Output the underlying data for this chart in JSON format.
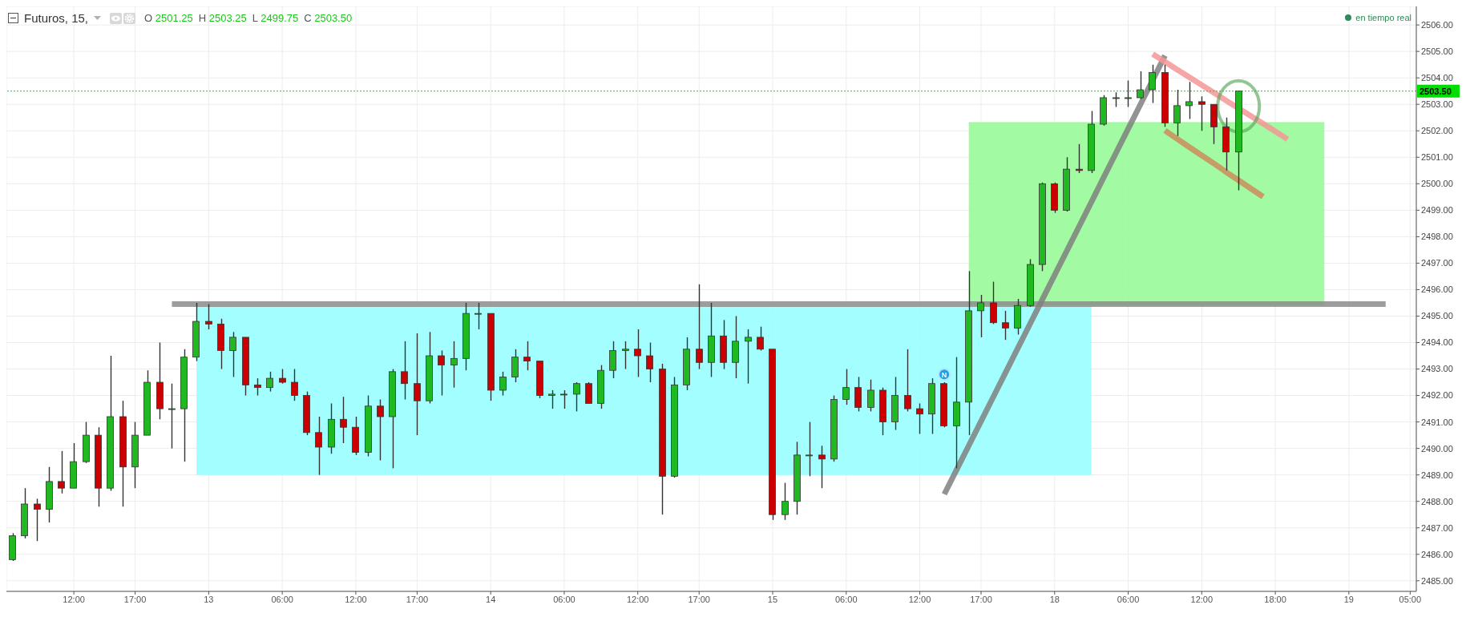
{
  "chart_data": {
    "type": "candlestick",
    "title": "Futuros, 15,",
    "annotations": [
      "O 2501.25",
      "H 2503.25",
      "L 2499.75",
      "C 2503.50",
      "en tiempo real"
    ],
    "categories": [
      null,
      null,
      null,
      null,
      null,
      "12:00",
      null,
      null,
      null,
      null,
      "17:00",
      null,
      null,
      null,
      null,
      null,
      "13",
      null,
      null,
      null,
      null,
      null,
      "06:00",
      null,
      null,
      null,
      null,
      null,
      "12:00",
      null,
      null,
      null,
      null,
      "17:00",
      null,
      null,
      null,
      null,
      null,
      "14",
      null,
      null,
      null,
      null,
      null,
      "06:00",
      null,
      null,
      null,
      null,
      null,
      "12:00",
      null,
      null,
      null,
      null,
      "17:00",
      null,
      null,
      null,
      null,
      null,
      "15",
      null,
      null,
      null,
      null,
      null,
      "06:00",
      null,
      null,
      null,
      null,
      null,
      "12:00",
      null,
      null,
      null,
      null,
      "17:00",
      null,
      null,
      null,
      null,
      null,
      "18",
      null,
      null,
      null,
      null,
      null,
      "06:00",
      null,
      null,
      null,
      null,
      null,
      "12:00",
      null,
      null,
      null,
      null,
      null,
      "18:00",
      null,
      null,
      null,
      null,
      null,
      "19",
      null,
      null,
      null,
      null,
      "05:00"
    ],
    "ohlc": [
      [
        2485.8,
        2486.8,
        2485.75,
        2486.7
      ],
      [
        2486.7,
        2488.5,
        2486.6,
        2487.9
      ],
      [
        2487.9,
        2488.1,
        2486.5,
        2487.7
      ],
      [
        2487.7,
        2489.3,
        2487.2,
        2488.75
      ],
      [
        2488.75,
        2489.9,
        2488.3,
        2488.5
      ],
      [
        2488.5,
        2490.2,
        2488.5,
        2489.5
      ],
      [
        2489.5,
        2491.0,
        2489.45,
        2490.5
      ],
      [
        2490.5,
        2490.8,
        2487.8,
        2488.5
      ],
      [
        2488.5,
        2493.5,
        2488.4,
        2491.2
      ],
      [
        2491.2,
        2491.8,
        2487.8,
        2489.3
      ],
      [
        2489.3,
        2491.0,
        2488.5,
        2490.5
      ],
      [
        2490.5,
        2492.95,
        2490.5,
        2492.5
      ],
      [
        2492.5,
        2494.0,
        2491.1,
        2491.5
      ],
      [
        2491.5,
        2492.45,
        2490.0,
        2491.5
      ],
      [
        2491.5,
        2493.75,
        2489.5,
        2493.45
      ],
      [
        2493.45,
        2495.5,
        2493.3,
        2494.8
      ],
      [
        2494.8,
        2495.45,
        2494.5,
        2494.7
      ],
      [
        2494.7,
        2494.9,
        2493.0,
        2493.7
      ],
      [
        2493.7,
        2494.4,
        2492.7,
        2494.2
      ],
      [
        2494.2,
        2494.2,
        2492.0,
        2492.4
      ],
      [
        2492.4,
        2492.65,
        2492.0,
        2492.3
      ],
      [
        2492.3,
        2492.9,
        2492.15,
        2492.65
      ],
      [
        2492.65,
        2493.0,
        2492.45,
        2492.5
      ],
      [
        2492.5,
        2493.0,
        2491.8,
        2492.0
      ],
      [
        2492.0,
        2492.15,
        2490.5,
        2490.6
      ],
      [
        2490.6,
        2491.2,
        2489.0,
        2490.05
      ],
      [
        2490.05,
        2491.7,
        2489.8,
        2491.1
      ],
      [
        2491.1,
        2491.95,
        2490.2,
        2490.8
      ],
      [
        2490.8,
        2491.2,
        2489.75,
        2489.85
      ],
      [
        2489.85,
        2492.0,
        2489.7,
        2491.6
      ],
      [
        2491.6,
        2491.85,
        2489.55,
        2491.2
      ],
      [
        2491.2,
        2493.0,
        2489.25,
        2492.9
      ],
      [
        2492.9,
        2494.05,
        2491.85,
        2492.45
      ],
      [
        2492.45,
        2494.35,
        2490.5,
        2491.8
      ],
      [
        2491.8,
        2494.4,
        2491.7,
        2493.5
      ],
      [
        2493.5,
        2493.7,
        2492.0,
        2493.15
      ],
      [
        2493.15,
        2494.05,
        2492.3,
        2493.4
      ],
      [
        2493.4,
        2495.5,
        2492.95,
        2495.1
      ],
      [
        2495.1,
        2495.5,
        2494.5,
        2495.1
      ],
      [
        2495.1,
        2495.1,
        2491.8,
        2492.2
      ],
      [
        2492.2,
        2492.9,
        2492.0,
        2492.7
      ],
      [
        2492.7,
        2493.75,
        2492.5,
        2493.45
      ],
      [
        2493.45,
        2494.05,
        2492.95,
        2493.3
      ],
      [
        2493.3,
        2493.3,
        2491.9,
        2492.0
      ],
      [
        2492.0,
        2492.2,
        2491.5,
        2492.05
      ],
      [
        2492.05,
        2492.2,
        2491.5,
        2492.05
      ],
      [
        2492.05,
        2492.5,
        2491.4,
        2492.45
      ],
      [
        2492.45,
        2492.5,
        2491.7,
        2491.7
      ],
      [
        2491.7,
        2493.15,
        2491.5,
        2492.95
      ],
      [
        2492.95,
        2494.05,
        2492.65,
        2493.7
      ],
      [
        2493.7,
        2494.05,
        2493.0,
        2493.75
      ],
      [
        2493.75,
        2494.5,
        2492.7,
        2493.5
      ],
      [
        2493.5,
        2494.0,
        2492.5,
        2493.0
      ],
      [
        2493.0,
        2493.2,
        2487.5,
        2488.95
      ],
      [
        2488.95,
        2492.7,
        2488.9,
        2492.4
      ],
      [
        2492.4,
        2494.2,
        2492.2,
        2493.75
      ],
      [
        2493.75,
        2496.2,
        2493.0,
        2493.25
      ],
      [
        2493.25,
        2495.5,
        2492.7,
        2494.25
      ],
      [
        2494.25,
        2494.85,
        2493.0,
        2493.25
      ],
      [
        2493.25,
        2495.0,
        2492.65,
        2494.05
      ],
      [
        2494.05,
        2494.5,
        2492.45,
        2494.2
      ],
      [
        2494.2,
        2494.6,
        2493.7,
        2493.75
      ],
      [
        2493.75,
        2493.75,
        2487.3,
        2487.5
      ],
      [
        2487.5,
        2488.7,
        2487.3,
        2488.0
      ],
      [
        2488.0,
        2490.25,
        2487.5,
        2489.75
      ],
      [
        2489.75,
        2491.0,
        2488.95,
        2489.75
      ],
      [
        2489.75,
        2490.1,
        2488.5,
        2489.6
      ],
      [
        2489.6,
        2492.0,
        2489.5,
        2491.85
      ],
      [
        2491.85,
        2493.0,
        2491.65,
        2492.3
      ],
      [
        2492.3,
        2492.7,
        2491.4,
        2491.55
      ],
      [
        2491.55,
        2492.6,
        2491.4,
        2492.2
      ],
      [
        2492.2,
        2492.3,
        2490.5,
        2491.0
      ],
      [
        2491.0,
        2492.7,
        2490.7,
        2492.0
      ],
      [
        2492.0,
        2493.75,
        2491.4,
        2491.5
      ],
      [
        2491.5,
        2491.7,
        2490.55,
        2491.3
      ],
      [
        2491.3,
        2492.65,
        2490.55,
        2492.45
      ],
      [
        2492.45,
        2492.5,
        2490.8,
        2490.85
      ],
      [
        2490.85,
        2493.45,
        2489.25,
        2491.75
      ],
      [
        2491.75,
        2496.7,
        2490.5,
        2495.2
      ],
      [
        2495.2,
        2495.8,
        2494.2,
        2495.5
      ],
      [
        2495.5,
        2496.3,
        2494.7,
        2494.75
      ],
      [
        2494.75,
        2495.2,
        2494.1,
        2494.55
      ],
      [
        2494.55,
        2495.65,
        2494.3,
        2495.4
      ],
      [
        2495.4,
        2497.15,
        2495.35,
        2496.95
      ],
      [
        2496.95,
        2500.05,
        2496.7,
        2500.0
      ],
      [
        2500.0,
        2500.05,
        2498.9,
        2499.0
      ],
      [
        2499.0,
        2501.0,
        2498.95,
        2500.55
      ],
      [
        2500.55,
        2501.5,
        2500.4,
        2500.5
      ],
      [
        2500.5,
        2502.75,
        2500.4,
        2502.25
      ],
      [
        2502.25,
        2503.35,
        2502.2,
        2503.25
      ],
      [
        2503.25,
        2503.45,
        2502.9,
        2503.25
      ],
      [
        2503.25,
        2503.9,
        2502.9,
        2503.25
      ],
      [
        2503.25,
        2504.25,
        2503.2,
        2503.55
      ],
      [
        2503.55,
        2504.5,
        2503.05,
        2504.2
      ],
      [
        2504.2,
        2504.5,
        2502.15,
        2502.3
      ],
      [
        2502.3,
        2503.55,
        2501.8,
        2502.95
      ],
      [
        2502.95,
        2503.85,
        2502.45,
        2503.1
      ],
      [
        2503.1,
        2503.3,
        2502.0,
        2503.0
      ],
      [
        2503.0,
        2503.0,
        2501.5,
        2502.15
      ],
      [
        2502.15,
        2502.5,
        2500.5,
        2501.2
      ],
      [
        2501.2,
        2503.5,
        2499.75,
        2503.5
      ],
      null,
      null,
      null,
      null,
      null,
      null,
      null,
      null,
      null,
      null,
      null,
      null,
      null,
      null
    ],
    "colors": [
      "#21b921",
      "#21b921",
      "#cc0000",
      "#21b921",
      "#cc0000",
      "#21b921",
      "#21b921",
      "#cc0000",
      "#21b921",
      "#cc0000",
      "#21b921",
      "#21b921",
      "#cc0000",
      "#21b921",
      "#21b921",
      "#21b921",
      "#cc0000",
      "#cc0000",
      "#21b921",
      "#cc0000",
      "#cc0000",
      "#21b921",
      "#cc0000",
      "#cc0000",
      "#cc0000",
      "#cc0000",
      "#21b921",
      "#cc0000",
      "#cc0000",
      "#21b921",
      "#cc0000",
      "#21b921",
      "#cc0000",
      "#cc0000",
      "#21b921",
      "#cc0000",
      "#21b921",
      "#21b921",
      "#21b921",
      "#cc0000",
      "#21b921",
      "#21b921",
      "#cc0000",
      "#cc0000",
      "#21b921",
      "#21b921",
      "#21b921",
      "#cc0000",
      "#21b921",
      "#21b921",
      "#21b921",
      "#cc0000",
      "#cc0000",
      "#cc0000",
      "#21b921",
      "#21b921",
      "#cc0000",
      "#21b921",
      "#cc0000",
      "#21b921",
      "#21b921",
      "#cc0000",
      "#cc0000",
      "#21b921",
      "#21b921",
      "#21b921",
      "#cc0000",
      "#21b921",
      "#21b921",
      "#cc0000",
      "#21b921",
      "#cc0000",
      "#21b921",
      "#cc0000",
      "#cc0000",
      "#21b921",
      "#cc0000",
      "#21b921",
      "#21b921",
      "#21b921",
      "#cc0000",
      "#cc0000",
      "#21b921",
      "#21b921",
      "#21b921",
      "#cc0000",
      "#21b921",
      "#cc0000",
      "#21b921",
      "#21b921",
      "#21b921",
      "#21b921",
      "#21b921",
      "#21b921",
      "#cc0000",
      "#21b921",
      "#21b921",
      "#cc0000",
      "#cc0000",
      "#cc0000",
      "#21b921",
      null,
      null,
      null,
      null,
      null,
      null,
      null,
      null,
      null,
      null,
      null,
      null,
      null,
      null
    ],
    "series": [
      {
        "type": "line",
        "color": "#99ffff",
        "values": [
          null,
          null,
          null,
          null,
          null,
          null,
          null,
          null,
          null,
          null,
          null,
          null,
          null,
          null,
          null,
          2495.35,
          2495.35,
          2495.35,
          2495.35,
          2495.35,
          2495.35,
          2495.35,
          2495.35,
          2495.35,
          2495.35,
          2495.35,
          2495.35,
          2495.35,
          2495.35,
          2495.35,
          2495.35,
          2495.35,
          2495.35,
          2495.35,
          2495.35,
          2495.35,
          2495.35,
          2495.35,
          2495.35,
          2495.35,
          2495.35,
          2495.35,
          2495.35,
          2495.35,
          2495.35,
          2495.35,
          2495.35,
          2495.35,
          2495.35,
          2495.35,
          2495.35,
          2495.35,
          2495.35,
          2495.35,
          2495.35,
          2495.35,
          2495.35,
          2495.35,
          2495.35,
          2495.35,
          2495.35,
          2495.35,
          2495.35,
          2495.35,
          2495.35,
          2495.35,
          2495.35,
          2495.35,
          2495.35,
          2495.35,
          2495.35,
          2495.35,
          2495.35,
          2495.35,
          2495.35,
          2495.35,
          2495.35,
          2495.35,
          2495.35,
          null,
          null,
          2495.35,
          null,
          2495.35,
          2495.35,
          2495.35,
          2495.35,
          2495.35,
          2495.35,
          null,
          null,
          null,
          null,
          null,
          null,
          null,
          null,
          null,
          null,
          null,
          null,
          null,
          null,
          null,
          null,
          null,
          null,
          null,
          null,
          null,
          null,
          null,
          null,
          null,
          null
        ],
        "upper": [
          null,
          null,
          null,
          null,
          null,
          null,
          null,
          null,
          null,
          null,
          null,
          null,
          null,
          null,
          null,
          2495.35,
          2495.35,
          2495.35,
          2495.35,
          2495.35,
          2495.35,
          2495.35,
          2495.35,
          2495.35,
          2495.35,
          2495.35,
          2495.35,
          2495.35,
          2495.35,
          2495.35,
          2495.35,
          2495.35,
          2495.35,
          2495.35,
          2495.35,
          2495.35,
          2495.35,
          2495.35,
          2495.35,
          2495.35,
          2495.35,
          2495.35,
          2495.35,
          2495.35,
          2495.35,
          2495.35,
          2495.35,
          2495.35,
          2495.35,
          2495.35,
          2495.35,
          2495.35,
          2495.35,
          2495.35,
          2495.35,
          2495.35,
          2495.35,
          2495.35,
          2495.35,
          2495.35,
          2495.35,
          2495.35,
          2495.35,
          2495.35,
          2495.35,
          2495.35,
          2495.35,
          2495.35,
          2495.35,
          2495.35,
          2495.35,
          2495.35,
          2495.35,
          2495.35,
          2495.35,
          2495.35,
          2495.35,
          2495.35,
          2495.35,
          2495.35,
          2495.35,
          2495.35,
          2495.35,
          2495.35,
          2495.35,
          2495.35,
          2495.35,
          2495.35,
          2495.35,
          null,
          null,
          null,
          null,
          null,
          null,
          null,
          null,
          null,
          null,
          null,
          null,
          null,
          null,
          null,
          null,
          null,
          null,
          null,
          null,
          null,
          null,
          null,
          null,
          null,
          null
        ],
        "lower": [
          null,
          null,
          null,
          null,
          null,
          null,
          null,
          null,
          null,
          null,
          null,
          null,
          null,
          null,
          null,
          2489.0,
          2489.0,
          2489.0,
          2489.0,
          2489.0,
          2489.0,
          2489.0,
          2489.0,
          2489.0,
          2489.0,
          2489.0,
          2489.0,
          2489.0,
          2489.0,
          2489.0,
          2489.0,
          2489.0,
          2489.0,
          2489.0,
          2489.0,
          2489.0,
          2489.0,
          2489.0,
          2489.0,
          2489.0,
          2489.0,
          2489.0,
          2489.0,
          2489.0,
          2489.0,
          2489.0,
          2489.0,
          2489.0,
          2489.0,
          2489.0,
          2489.0,
          2489.0,
          2489.0,
          2489.0,
          2489.0,
          2489.0,
          2489.0,
          2489.0,
          2489.0,
          2489.0,
          2489.0,
          2489.0,
          2489.0,
          2489.0,
          2489.0,
          2489.0,
          2489.0,
          2489.0,
          2489.0,
          2489.0,
          2489.0,
          2489.0,
          2489.0,
          2489.0,
          2489.0,
          2489.0,
          2489.0,
          2489.0,
          2489.0,
          2489.0,
          2489.0,
          2489.0,
          2489.0,
          2489.0,
          2489.0,
          2489.0,
          2489.0,
          2489.0,
          2489.0,
          null,
          null,
          null,
          null,
          null,
          null,
          null,
          null,
          null,
          null,
          null,
          null,
          null,
          null,
          null,
          null,
          null,
          null,
          null,
          null,
          null,
          null,
          null,
          null,
          null,
          null
        ]
      },
      {
        "type": "line",
        "color": "#98fb98",
        "values": [
          null,
          null,
          null,
          null,
          null,
          null,
          null,
          null,
          null,
          null,
          null,
          null,
          null,
          null,
          null,
          null,
          null,
          null,
          null,
          null,
          null,
          null,
          null,
          null,
          null,
          null,
          null,
          null,
          null,
          null,
          null,
          null,
          null,
          null,
          null,
          null,
          null,
          null,
          null,
          null,
          null,
          null,
          null,
          null,
          null,
          null,
          null,
          null,
          null,
          null,
          null,
          null,
          null,
          null,
          null,
          null,
          null,
          null,
          null,
          null,
          null,
          null,
          null,
          null,
          null,
          null,
          null,
          null,
          null,
          null,
          null,
          null,
          null,
          null,
          null,
          null,
          null,
          null,
          2502.3,
          2502.3,
          2502.3,
          2502.3,
          2502.3,
          2502.3,
          2502.3,
          2502.3,
          2502.3,
          2502.3,
          2502.3,
          null,
          2502.3,
          2502.3,
          2502.3,
          2502.3,
          null,
          null,
          2502.3,
          2502.3,
          null,
          2502.3,
          null,
          2502.3,
          2502.3,
          2502.3,
          2502.3,
          2502.3,
          2502.3,
          2502.3,
          null,
          null,
          null,
          null,
          null,
          null,
          null
        ],
        "upper": [
          null,
          null,
          null,
          null,
          null,
          null,
          null,
          null,
          null,
          null,
          null,
          null,
          null,
          null,
          null,
          null,
          null,
          null,
          null,
          null,
          null,
          null,
          null,
          null,
          null,
          null,
          null,
          null,
          null,
          null,
          null,
          null,
          null,
          null,
          null,
          null,
          null,
          null,
          null,
          null,
          null,
          null,
          null,
          null,
          null,
          null,
          null,
          null,
          null,
          null,
          null,
          null,
          null,
          null,
          null,
          null,
          null,
          null,
          null,
          null,
          null,
          null,
          null,
          null,
          null,
          null,
          null,
          null,
          null,
          null,
          null,
          null,
          null,
          null,
          null,
          null,
          null,
          null,
          2502.3,
          2502.3,
          2502.3,
          2502.3,
          2502.3,
          2502.3,
          2502.3,
          2502.3,
          2502.3,
          2502.3,
          2502.3,
          2502.3,
          2502.3,
          2502.3,
          2502.3,
          2502.3,
          2502.3,
          2502.3,
          2502.3,
          2502.3,
          2502.3,
          2502.3,
          2502.3,
          2502.3,
          2502.3,
          2502.3,
          2502.3,
          2502.3,
          2502.3,
          2502.3,
          null,
          null,
          null,
          null,
          null,
          null,
          null
        ],
        "lower": [
          null,
          null,
          null,
          null,
          null,
          null,
          null,
          null,
          null,
          null,
          null,
          null,
          null,
          null,
          null,
          null,
          null,
          null,
          null,
          null,
          null,
          null,
          null,
          null,
          null,
          null,
          null,
          null,
          null,
          null,
          null,
          null,
          null,
          null,
          null,
          null,
          null,
          null,
          null,
          null,
          null,
          null,
          null,
          null,
          null,
          null,
          null,
          null,
          null,
          null,
          null,
          null,
          null,
          null,
          null,
          null,
          null,
          null,
          null,
          null,
          null,
          null,
          null,
          null,
          null,
          null,
          null,
          null,
          null,
          null,
          null,
          null,
          null,
          null,
          null,
          null,
          null,
          null,
          2495.4,
          2495.4,
          2495.4,
          2495.4,
          2495.4,
          2495.4,
          2495.4,
          2495.4,
          2495.4,
          2495.4,
          2495.4,
          2495.4,
          2495.4,
          2495.4,
          2495.4,
          2495.4,
          2495.4,
          2495.4,
          2495.4,
          2495.4,
          2495.4,
          2495.4,
          2495.4,
          2495.4,
          2495.4,
          2495.4,
          2495.4,
          2495.4,
          2495.4,
          2495.4,
          null,
          null,
          null,
          null,
          null,
          null,
          null
        ]
      },
      {
        "type": "line",
        "color": "#8c8c8c",
        "values": [
          null,
          null,
          null,
          null,
          null,
          null,
          null,
          null,
          null,
          null,
          null,
          null,
          null,
          2495.45,
          2495.45,
          2495.45,
          2495.45,
          2495.45,
          2495.45,
          2495.45,
          2495.45,
          2495.45,
          2495.45,
          2495.45,
          2495.45,
          2495.45,
          2495.45,
          2495.45,
          2495.45,
          2495.45,
          2495.45,
          2495.45,
          2495.45,
          2495.45,
          2495.45,
          2495.45,
          2495.45,
          2495.45,
          2495.45,
          2495.45,
          2495.45,
          2495.45,
          2495.45,
          2495.45,
          2495.45,
          2495.45,
          2495.45,
          2495.45,
          2495.45,
          2495.45,
          2495.45,
          2495.45,
          2495.45,
          2495.45,
          2495.45,
          2495.45,
          2495.45,
          2495.45,
          2495.45,
          2495.45,
          2495.45,
          2495.45,
          2495.45,
          2495.45,
          2495.45,
          2495.45,
          2495.45,
          2495.45,
          2495.45,
          2495.45,
          2495.45,
          2495.45,
          2495.45,
          2495.45,
          2495.45,
          2495.45,
          2495.45,
          2495.45,
          2495.45,
          null,
          null,
          2495.45,
          2495.45,
          null,
          2495.45,
          2495.45,
          2495.45,
          2495.45,
          2495.45,
          2495.45,
          2495.45,
          2495.45,
          2495.45,
          2495.45,
          2495.45,
          2495.45,
          2495.45,
          2495.45,
          2495.45,
          2495.45,
          2495.45,
          2495.45,
          2495.45,
          2495.45,
          2495.45,
          2495.45,
          2495.45,
          2495.45,
          2495.45,
          2495.45,
          2495.45,
          2495.45,
          2495.45,
          null,
          null
        ]
      },
      {
        "type": "line",
        "color": "#808080",
        "values": [
          null,
          null,
          null,
          null,
          null,
          null,
          null,
          null,
          null,
          null,
          null,
          null,
          null,
          null,
          null,
          null,
          null,
          null,
          null,
          null,
          null,
          null,
          null,
          null,
          null,
          null,
          null,
          null,
          null,
          null,
          null,
          null,
          null,
          null,
          null,
          null,
          null,
          null,
          null,
          null,
          null,
          null,
          null,
          null,
          null,
          null,
          null,
          null,
          null,
          null,
          null,
          null,
          null,
          null,
          null,
          null,
          null,
          null,
          null,
          null,
          null,
          null,
          null,
          null,
          null,
          null,
          null,
          null,
          null,
          null,
          null,
          null,
          null,
          null,
          null,
          null,
          2488.27,
          2489.19,
          2490.11,
          2491.03,
          2491.95,
          2492.87,
          2493.79,
          2494.71,
          2495.63,
          2496.55,
          2497.47,
          2498.39,
          2499.31,
          2500.24,
          2501.16,
          2502.08,
          2503.0,
          null,
          2504.84,
          null,
          null,
          null,
          null,
          null,
          null,
          null,
          null,
          null,
          null,
          null,
          null,
          null,
          null,
          null,
          null,
          null,
          null,
          null,
          null
        ]
      },
      {
        "type": "line",
        "color": "#f59696",
        "values": [
          null,
          null,
          null,
          null,
          null,
          null,
          null,
          null,
          null,
          null,
          null,
          null,
          null,
          null,
          null,
          null,
          null,
          null,
          null,
          null,
          null,
          null,
          null,
          null,
          null,
          null,
          null,
          null,
          null,
          null,
          null,
          null,
          null,
          null,
          null,
          null,
          null,
          null,
          null,
          null,
          null,
          null,
          null,
          null,
          null,
          null,
          null,
          null,
          null,
          null,
          null,
          null,
          null,
          null,
          null,
          null,
          null,
          null,
          null,
          null,
          null,
          null,
          null,
          null,
          null,
          null,
          null,
          null,
          null,
          null,
          null,
          null,
          null,
          null,
          null,
          null,
          null,
          null,
          null,
          null,
          null,
          null,
          null,
          null,
          null,
          null,
          null,
          null,
          null,
          null,
          null,
          null,
          null,
          2504.9,
          2504.61,
          2504.31,
          2504.02,
          2503.73,
          2503.44,
          2503.14,
          null,
          2502.56,
          2502.27,
          2501.98,
          2501.68,
          null,
          null,
          null,
          null,
          null,
          null,
          null,
          null,
          null,
          null
        ]
      },
      {
        "type": "line",
        "color": "#cd8c5a",
        "values": [
          null,
          null,
          null,
          null,
          null,
          null,
          null,
          null,
          null,
          null,
          null,
          null,
          null,
          null,
          null,
          null,
          null,
          null,
          null,
          null,
          null,
          null,
          null,
          null,
          null,
          null,
          null,
          null,
          null,
          null,
          null,
          null,
          null,
          null,
          null,
          null,
          null,
          null,
          null,
          null,
          null,
          null,
          null,
          null,
          null,
          null,
          null,
          null,
          null,
          null,
          null,
          null,
          null,
          null,
          null,
          null,
          null,
          null,
          null,
          null,
          null,
          null,
          null,
          null,
          null,
          null,
          null,
          null,
          null,
          null,
          null,
          null,
          null,
          null,
          null,
          null,
          null,
          null,
          null,
          null,
          null,
          null,
          null,
          null,
          null,
          null,
          null,
          null,
          null,
          null,
          null,
          null,
          null,
          null,
          2502.01,
          2501.69,
          2501.38,
          2501.07,
          2500.76,
          2500.44,
          2500.13,
          2499.82,
          2499.51,
          null,
          null,
          null,
          null,
          null,
          null,
          null,
          null,
          null,
          null,
          null,
          null
        ]
      },
      {
        "type": "scatter",
        "name": "N",
        "color": "#1ea0e6",
        "marker": "circle",
        "values": [
          null,
          null,
          null,
          null,
          null,
          null,
          null,
          null,
          null,
          null,
          null,
          null,
          null,
          null,
          null,
          null,
          null,
          null,
          null,
          null,
          null,
          null,
          null,
          null,
          null,
          null,
          null,
          null,
          null,
          null,
          null,
          null,
          null,
          null,
          null,
          null,
          null,
          null,
          null,
          null,
          null,
          null,
          null,
          null,
          null,
          null,
          null,
          null,
          null,
          null,
          null,
          null,
          null,
          null,
          null,
          null,
          null,
          null,
          null,
          null,
          null,
          null,
          null,
          null,
          null,
          null,
          null,
          null,
          null,
          null,
          null,
          null,
          null,
          null,
          null,
          null,
          2492.8,
          null,
          null,
          null,
          null,
          null,
          null,
          null,
          null,
          null,
          null,
          null,
          null,
          null,
          null,
          null,
          null,
          null,
          null,
          null,
          null,
          null,
          null,
          null,
          null,
          null,
          null,
          null,
          null,
          null,
          null,
          null,
          null,
          null,
          null,
          null,
          null,
          null,
          null
        ]
      }
    ],
    "ref_lines": [
      {
        "axis": "y",
        "value": 2503.5,
        "label": "2503.50",
        "color": "#00dd00",
        "line_style": "dotted"
      }
    ],
    "ylim": [
      2484.6,
      2506.7
    ],
    "yticks": [
      {
        "value": 2485,
        "label": "2485.00"
      },
      {
        "value": 2486,
        "label": "2486.00"
      },
      {
        "value": 2487,
        "label": "2487.00"
      },
      {
        "value": 2488,
        "label": "2488.00"
      },
      {
        "value": 2489,
        "label": "2489.00"
      },
      {
        "value": 2490,
        "label": "2490.00"
      },
      {
        "value": 2491,
        "label": "2491.00"
      },
      {
        "value": 2492,
        "label": "2492.00"
      },
      {
        "value": 2493,
        "label": "2493.00"
      },
      {
        "value": 2494,
        "label": "2494.00"
      },
      {
        "value": 2495,
        "label": "2495.00"
      },
      {
        "value": 2496,
        "label": "2496.00"
      },
      {
        "value": 2497,
        "label": "2497.00"
      },
      {
        "value": 2498,
        "label": "2498.00"
      },
      {
        "value": 2499,
        "label": "2499.00"
      },
      {
        "value": 2500,
        "label": "2500.00"
      },
      {
        "value": 2501,
        "label": "2501.00"
      },
      {
        "value": 2502,
        "label": "2502.00"
      },
      {
        "value": 2503,
        "label": "2503.00"
      },
      {
        "value": 2504,
        "label": "2504.00"
      },
      {
        "value": 2505,
        "label": "2505.00"
      },
      {
        "value": 2506,
        "label": "2506.00"
      }
    ],
    "grid": true
  }
}
